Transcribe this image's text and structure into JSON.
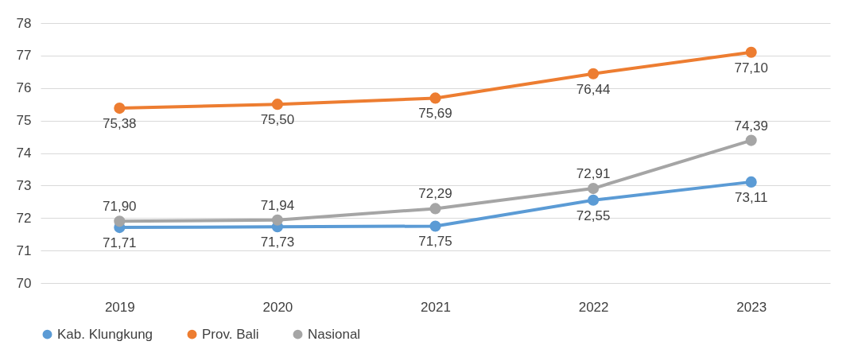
{
  "chart_data": {
    "type": "line",
    "categories": [
      "2019",
      "2020",
      "2021",
      "2022",
      "2023"
    ],
    "series": [
      {
        "name": "Kab. Klungkung",
        "color": "#5b9bd5",
        "values": [
          71.71,
          71.73,
          71.75,
          72.55,
          73.11
        ],
        "value_labels": [
          "71,71",
          "71,73",
          "71,75",
          "72,55",
          "73,11"
        ]
      },
      {
        "name": "Prov. Bali",
        "color": "#ed7d31",
        "values": [
          75.38,
          75.5,
          75.69,
          76.44,
          77.1
        ],
        "value_labels": [
          "75,38",
          "75,50",
          "75,69",
          "76,44",
          "77,10"
        ]
      },
      {
        "name": "Nasional",
        "color": "#a5a5a5",
        "values": [
          71.9,
          71.94,
          72.29,
          72.91,
          74.39
        ],
        "value_labels": [
          "71,90",
          "71,94",
          "72,29",
          "72,91",
          "74,39"
        ]
      }
    ],
    "ylim": [
      70,
      78
    ],
    "yticks": [
      70,
      71,
      72,
      73,
      74,
      75,
      76,
      77,
      78
    ],
    "grid": "y",
    "legend": "bottom",
    "marker": "circle",
    "line_style": "solid"
  }
}
